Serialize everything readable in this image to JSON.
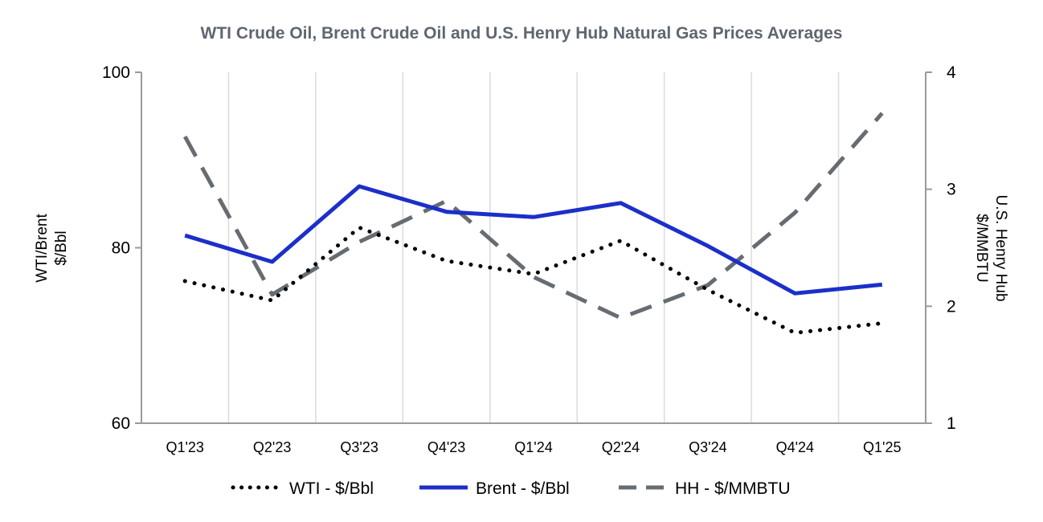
{
  "chart_data": {
    "type": "line",
    "title": "WTI Crude Oil, Brent Crude Oil and U.S. Henry Hub Natural Gas Prices Averages",
    "categories": [
      "Q1'23",
      "Q2'23",
      "Q3'23",
      "Q4'23",
      "Q1'24",
      "Q2'24",
      "Q3'24",
      "Q4'24",
      "Q1'25"
    ],
    "y_left": {
      "label_line1": "WTI/Brent",
      "label_line2": "$/Bbl",
      "ylim": [
        60,
        100
      ],
      "ticks": [
        60,
        80,
        100
      ]
    },
    "y_right": {
      "label_line1": "U.S. Henry Hub",
      "label_line2": "$/MMBTU",
      "ylim": [
        1,
        4
      ],
      "ticks": [
        1,
        2,
        3,
        4
      ]
    },
    "series": [
      {
        "name": "WTI - $/Bbl",
        "axis": "left",
        "style": "dotted",
        "color": "#000000",
        "values": [
          76.2,
          74.0,
          82.3,
          78.5,
          77.0,
          80.8,
          75.2,
          70.3,
          71.4
        ]
      },
      {
        "name": "Brent - $/Bbl",
        "axis": "left",
        "style": "solid",
        "color": "#1c2fc9",
        "values": [
          81.4,
          78.4,
          87.0,
          84.1,
          83.5,
          85.1,
          80.2,
          74.8,
          75.8
        ]
      },
      {
        "name": "HH - $/MMBTU",
        "axis": "right",
        "style": "dashed",
        "color": "#666c72",
        "values": [
          3.45,
          2.1,
          2.55,
          2.9,
          2.25,
          1.9,
          2.18,
          2.8,
          3.65
        ]
      }
    ],
    "grid": "vertical",
    "legend": "bottom"
  }
}
